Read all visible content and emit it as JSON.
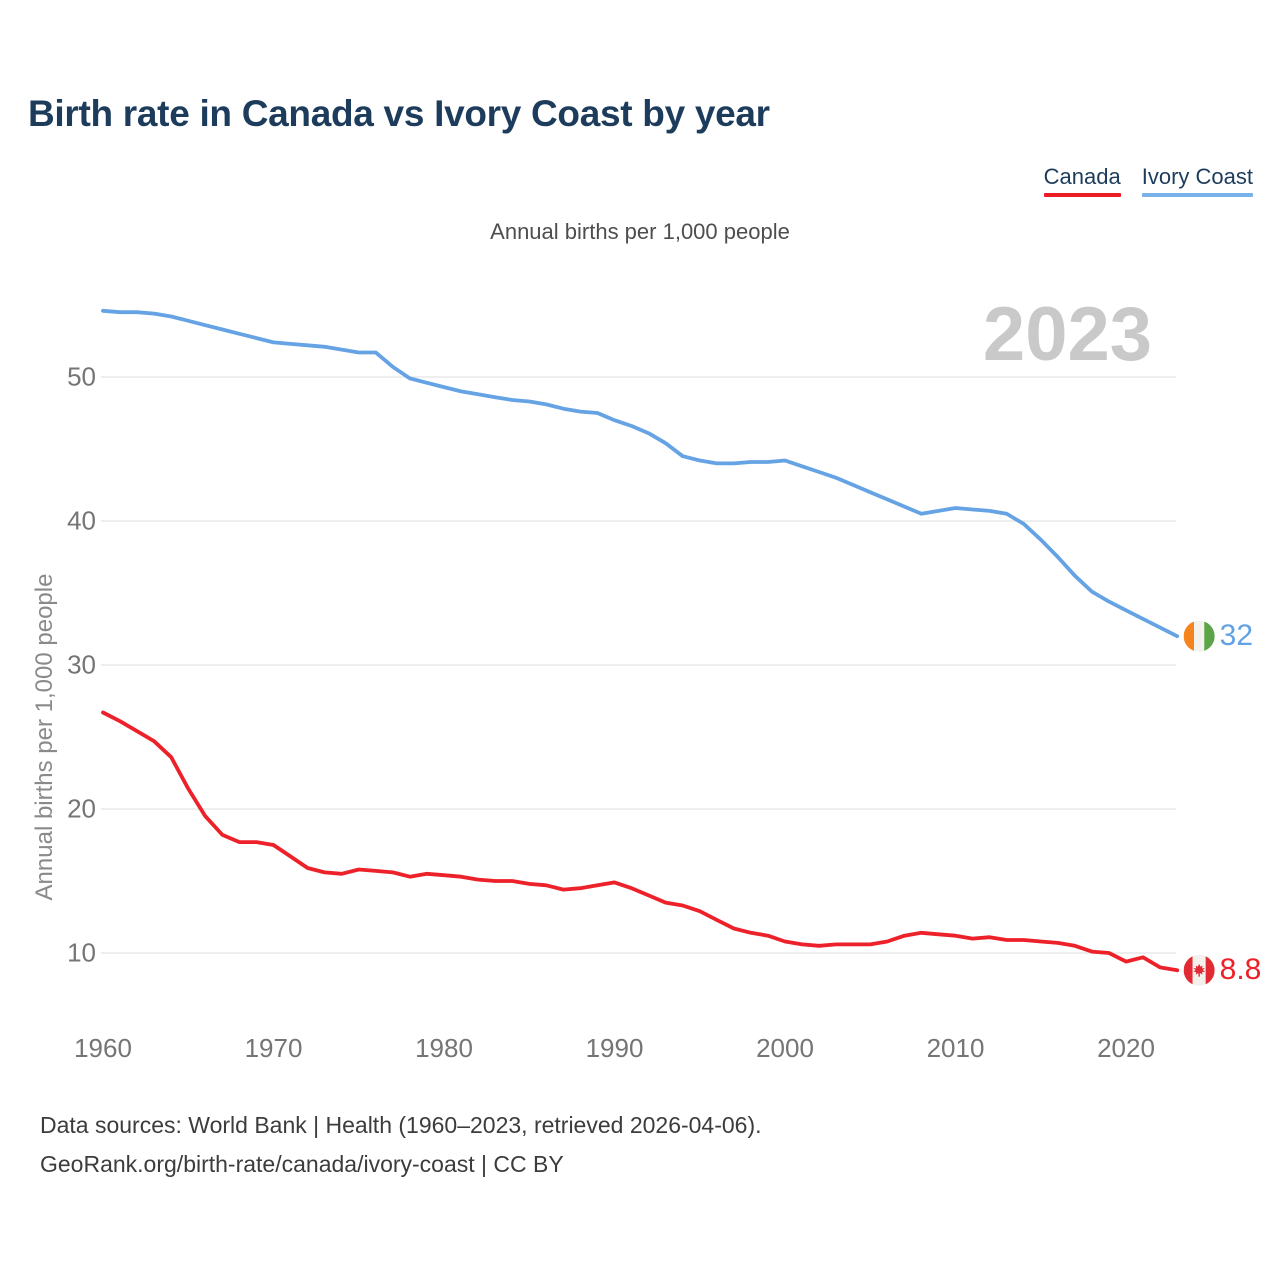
{
  "page": {
    "title": "Birth rate in Canada vs Ivory Coast by year",
    "subtitle": "Annual births per 1,000 people",
    "watermark_year": "2023",
    "footer_line1": "Data sources: World Bank | Health (1960–2023, retrieved 2026-04-06).",
    "footer_line2": "GeoRank.org/birth-rate/canada/ivory-coast | CC BY"
  },
  "legend": {
    "items": [
      {
        "label": "Canada",
        "underline_color": "#ec1c24"
      },
      {
        "label": "Ivory Coast",
        "underline_color": "#78b1e8"
      }
    ]
  },
  "end_labels": {
    "ivory_coast": "32",
    "canada": "8.8"
  },
  "icons": [
    {
      "name": "canada-flag-icon",
      "colors": {
        "red": "#e12a33",
        "white": "#f4f1ec"
      }
    },
    {
      "name": "ivory-coast-flag-icon",
      "colors": {
        "orange": "#f5841e",
        "white": "#f4f2ec",
        "green": "#5ba548"
      }
    }
  ],
  "chart_data": {
    "type": "line",
    "title": "Birth rate in Canada vs Ivory Coast by year",
    "subtitle": "Annual births per 1,000 people",
    "xlabel": "",
    "ylabel": "Annual births per 1,000 people",
    "grid": "horizontal",
    "legend_position": "top-right",
    "xlim": [
      1960,
      2023
    ],
    "ylim": [
      6,
      56
    ],
    "xticks": [
      1960,
      1970,
      1980,
      1990,
      2000,
      2010,
      2020
    ],
    "yticks": [
      10,
      20,
      30,
      40,
      50
    ],
    "x": [
      1960,
      1961,
      1962,
      1963,
      1964,
      1965,
      1966,
      1967,
      1968,
      1969,
      1970,
      1971,
      1972,
      1973,
      1974,
      1975,
      1976,
      1977,
      1978,
      1979,
      1980,
      1981,
      1982,
      1983,
      1984,
      1985,
      1986,
      1987,
      1988,
      1989,
      1990,
      1991,
      1992,
      1993,
      1994,
      1995,
      1996,
      1997,
      1998,
      1999,
      2000,
      2001,
      2002,
      2003,
      2004,
      2005,
      2006,
      2007,
      2008,
      2009,
      2010,
      2011,
      2012,
      2013,
      2014,
      2015,
      2016,
      2017,
      2018,
      2019,
      2020,
      2021,
      2022,
      2023
    ],
    "series": [
      {
        "name": "Canada",
        "color": "#ed2129",
        "end_value_label": "8.8",
        "values": [
          26.7,
          26.1,
          25.4,
          24.7,
          23.6,
          21.4,
          19.5,
          18.2,
          17.7,
          17.7,
          17.5,
          16.7,
          15.9,
          15.6,
          15.5,
          15.8,
          15.7,
          15.6,
          15.3,
          15.5,
          15.4,
          15.3,
          15.1,
          15.0,
          15.0,
          14.8,
          14.7,
          14.4,
          14.5,
          14.7,
          14.9,
          14.5,
          14.0,
          13.5,
          13.3,
          12.9,
          12.3,
          11.7,
          11.4,
          11.2,
          10.8,
          10.6,
          10.5,
          10.6,
          10.6,
          10.6,
          10.8,
          11.2,
          11.4,
          11.3,
          11.2,
          11.0,
          11.1,
          10.9,
          10.9,
          10.8,
          10.7,
          10.5,
          10.1,
          10.0,
          9.4,
          9.7,
          9.0,
          8.8
        ]
      },
      {
        "name": "Ivory Coast",
        "color": "#66a3e4",
        "end_value_label": "32",
        "values": [
          54.6,
          54.5,
          54.5,
          54.4,
          54.2,
          53.9,
          53.6,
          53.3,
          53.0,
          52.7,
          52.4,
          52.3,
          52.2,
          52.1,
          51.9,
          51.7,
          51.7,
          50.7,
          49.9,
          49.6,
          49.3,
          49.0,
          48.8,
          48.6,
          48.4,
          48.3,
          48.1,
          47.8,
          47.6,
          47.5,
          47.0,
          46.6,
          46.1,
          45.4,
          44.5,
          44.2,
          44.0,
          44.0,
          44.1,
          44.1,
          44.2,
          43.8,
          43.4,
          43.0,
          42.5,
          42.0,
          41.5,
          41.0,
          40.5,
          40.7,
          40.9,
          40.8,
          40.7,
          40.5,
          39.8,
          38.7,
          37.5,
          36.2,
          35.1,
          34.4,
          33.8,
          33.2,
          32.6,
          32.0
        ]
      }
    ]
  }
}
